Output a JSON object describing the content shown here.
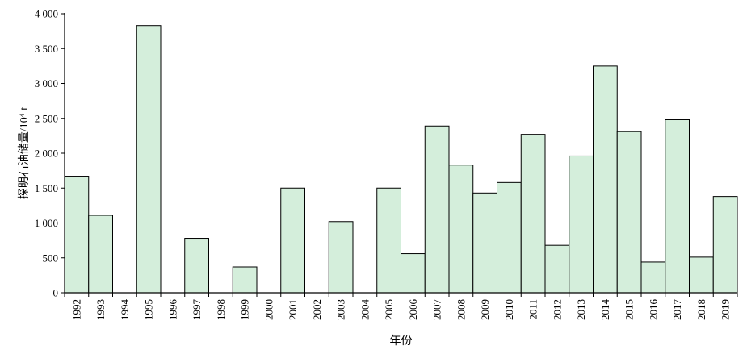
{
  "chart_data": {
    "type": "bar",
    "title": "",
    "xlabel": "年份",
    "ylabel": "探明石油储量/10⁴ t",
    "ylim": [
      0,
      4000
    ],
    "yticks": [
      0,
      500,
      1000,
      1500,
      2000,
      2500,
      3000,
      3500,
      4000
    ],
    "ytick_labels": [
      "0",
      "500",
      "1 000",
      "1 500",
      "2 000",
      "2 500",
      "3 000",
      "3 500",
      "4 000"
    ],
    "categories": [
      "1992",
      "1993",
      "1994",
      "1995",
      "1996",
      "1997",
      "1998",
      "1999",
      "2000",
      "2001",
      "2002",
      "2003",
      "2004",
      "2005",
      "2006",
      "2007",
      "2008",
      "2009",
      "2010",
      "2011",
      "2012",
      "2013",
      "2014",
      "2015",
      "2016",
      "2017",
      "2018",
      "2019"
    ],
    "values": [
      1670,
      1110,
      0,
      3830,
      0,
      780,
      0,
      370,
      0,
      1500,
      0,
      1020,
      0,
      1500,
      560,
      2390,
      1830,
      1430,
      1580,
      2270,
      680,
      1960,
      3250,
      2310,
      440,
      2480,
      510,
      1380
    ],
    "grid": false,
    "colors": {
      "bar_fill": "#d4eedb",
      "bar_stroke": "#000000",
      "axis": "#000000"
    }
  }
}
